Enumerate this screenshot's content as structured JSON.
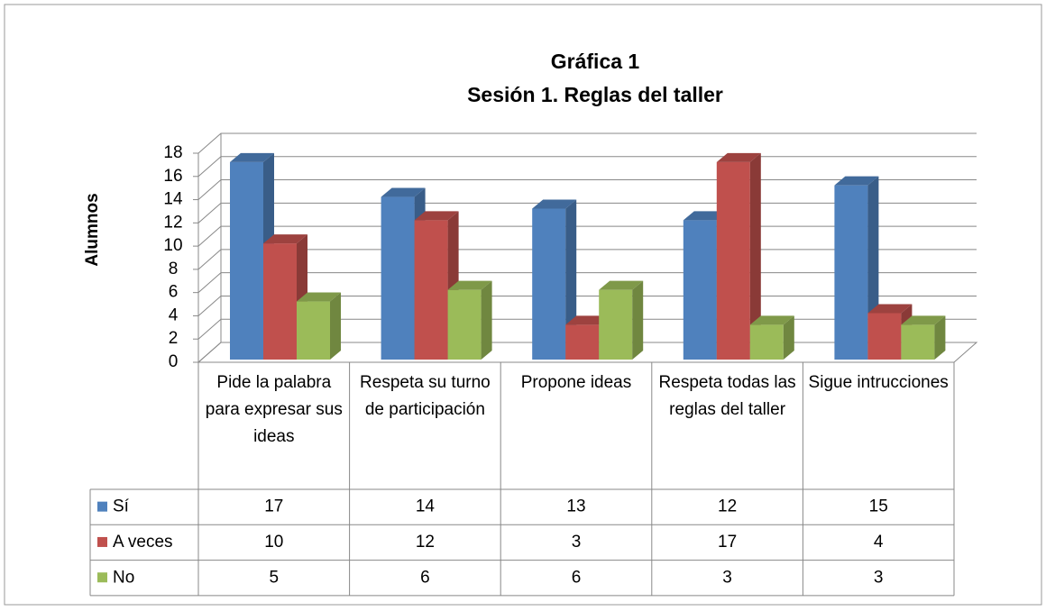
{
  "chart_data": {
    "type": "bar3d",
    "title": "Gráfica 1",
    "subtitle": "Sesión  1. Reglas del taller",
    "y_label": "Alumnos",
    "categories": [
      "Pide la palabra para expresar sus ideas",
      "Respeta su turno de participación",
      "Propone ideas",
      "Respeta todas las reglas del taller",
      "Sigue intrucciones"
    ],
    "series": [
      {
        "name": "Sí",
        "color": "#4f81bd",
        "values": [
          17,
          14,
          13,
          12,
          15
        ]
      },
      {
        "name": "A veces",
        "color": "#c0504d",
        "values": [
          10,
          12,
          3,
          17,
          4
        ]
      },
      {
        "name": "No",
        "color": "#9bbb59",
        "values": [
          5,
          6,
          6,
          3,
          3
        ]
      }
    ],
    "ylim": [
      0,
      18
    ],
    "yticks": [
      0,
      2,
      4,
      6,
      8,
      10,
      12,
      14,
      16,
      18
    ],
    "grid": true
  }
}
